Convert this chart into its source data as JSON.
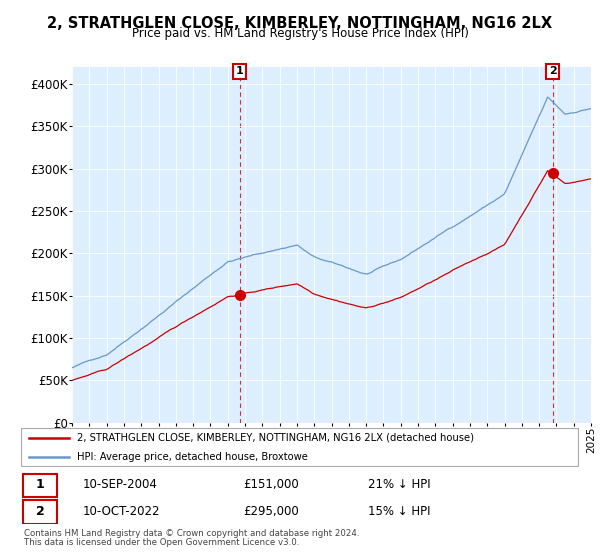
{
  "title": "2, STRATHGLEN CLOSE, KIMBERLEY, NOTTINGHAM, NG16 2LX",
  "subtitle": "Price paid vs. HM Land Registry's House Price Index (HPI)",
  "legend_line1": "2, STRATHGLEN CLOSE, KIMBERLEY, NOTTINGHAM, NG16 2LX (detached house)",
  "legend_line2": "HPI: Average price, detached house, Broxtowe",
  "annotation1_label": "1",
  "annotation1_date": "10-SEP-2004",
  "annotation1_price": "£151,000",
  "annotation1_hpi": "21% ↓ HPI",
  "annotation2_label": "2",
  "annotation2_date": "10-OCT-2022",
  "annotation2_price": "£295,000",
  "annotation2_hpi": "15% ↓ HPI",
  "footnote1": "Contains HM Land Registry data © Crown copyright and database right 2024.",
  "footnote2": "This data is licensed under the Open Government Licence v3.0.",
  "hpi_color": "#6699cc",
  "price_color": "#cc0000",
  "annot_box_color": "#cc0000",
  "bg_color": "#ddeeff",
  "ylim": [
    0,
    420000
  ],
  "yticks": [
    0,
    50000,
    100000,
    150000,
    200000,
    250000,
    300000,
    350000,
    400000
  ],
  "ytick_labels": [
    "£0",
    "£50K",
    "£100K",
    "£150K",
    "£200K",
    "£250K",
    "£300K",
    "£350K",
    "£400K"
  ],
  "sale1_x": 2004.7,
  "sale1_y": 151000,
  "sale2_x": 2022.78,
  "sale2_y": 295000,
  "xmin": 1995,
  "xmax": 2025
}
